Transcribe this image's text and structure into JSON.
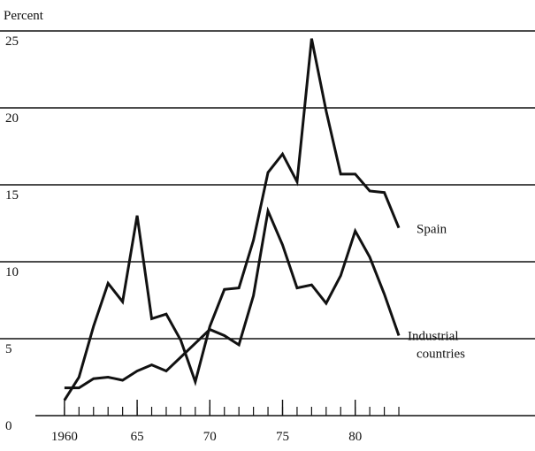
{
  "chart_data": {
    "type": "line",
    "y_label": "Percent",
    "x": [
      1960,
      1961,
      1962,
      1963,
      1964,
      1965,
      1966,
      1967,
      1968,
      1969,
      1970,
      1971,
      1972,
      1973,
      1974,
      1975,
      1976,
      1977,
      1978,
      1979,
      1980,
      1981,
      1982,
      1983
    ],
    "series": [
      {
        "name": "Spain",
        "color": "#111111",
        "values": [
          1.0,
          2.5,
          5.8,
          8.6,
          7.4,
          13.0,
          6.3,
          6.6,
          4.9,
          2.2,
          5.8,
          8.2,
          8.3,
          11.4,
          15.8,
          17.0,
          15.2,
          24.5,
          19.8,
          15.7,
          15.7,
          14.6,
          14.5,
          12.2
        ]
      },
      {
        "name": "Industrial countries",
        "color": "#111111",
        "values": [
          1.8,
          1.8,
          2.4,
          2.5,
          2.3,
          2.9,
          3.3,
          2.9,
          3.8,
          4.7,
          5.6,
          5.2,
          4.6,
          7.8,
          13.3,
          11.1,
          8.3,
          8.5,
          7.3,
          9.1,
          12.0,
          10.3,
          7.9,
          5.2
        ]
      }
    ],
    "xlim": [
      1958,
      1992
    ],
    "xticks": [
      {
        "value": 1960,
        "label": "1960"
      },
      {
        "value": 1965,
        "label": "65"
      },
      {
        "value": 1970,
        "label": "70"
      },
      {
        "value": 1975,
        "label": "75"
      },
      {
        "value": 1980,
        "label": "80"
      }
    ],
    "ylim": [
      0,
      25
    ],
    "yticks": [
      0,
      5,
      10,
      15,
      20,
      25
    ],
    "grid": true
  }
}
